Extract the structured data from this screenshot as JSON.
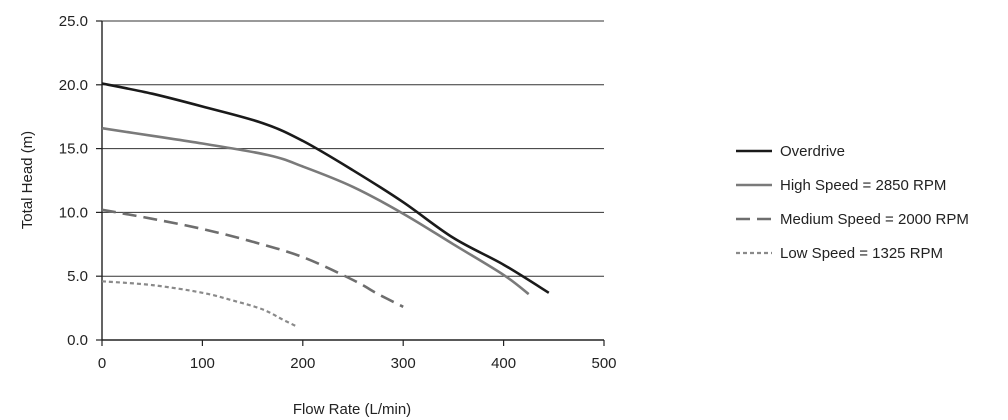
{
  "chart_data": {
    "type": "line",
    "xlabel": "Flow Rate (L/min)",
    "ylabel": "Total Head (m)",
    "xlim": [
      0,
      500
    ],
    "ylim": [
      0,
      25
    ],
    "xticks": [
      "0",
      "100",
      "200",
      "300",
      "400",
      "500"
    ],
    "yticks": [
      "0.0",
      "5.0",
      "10.0",
      "15.0",
      "20.0",
      "25.0"
    ],
    "grid": "horizontal",
    "legend_position": "right",
    "series": [
      {
        "name": "Overdrive",
        "color": "#1a1a1a",
        "dash": "solid",
        "points": [
          [
            0,
            20.1
          ],
          [
            50,
            19.3
          ],
          [
            100,
            18.3
          ],
          [
            160,
            17.0
          ],
          [
            200,
            15.6
          ],
          [
            250,
            13.3
          ],
          [
            300,
            10.8
          ],
          [
            350,
            8.0
          ],
          [
            400,
            5.9
          ],
          [
            445,
            3.7
          ]
        ]
      },
      {
        "name": "High Speed = 2850 RPM",
        "color": "#7a7a7a",
        "dash": "solid",
        "points": [
          [
            0,
            16.6
          ],
          [
            50,
            16.0
          ],
          [
            100,
            15.4
          ],
          [
            165,
            14.5
          ],
          [
            200,
            13.6
          ],
          [
            250,
            12.0
          ],
          [
            300,
            9.9
          ],
          [
            350,
            7.5
          ],
          [
            400,
            5.1
          ],
          [
            425,
            3.6
          ]
        ]
      },
      {
        "name": "Medium Speed = 2000 RPM",
        "color": "#6e6e6e",
        "dash": "long-dash",
        "points": [
          [
            0,
            10.2
          ],
          [
            50,
            9.5
          ],
          [
            100,
            8.7
          ],
          [
            150,
            7.7
          ],
          [
            200,
            6.5
          ],
          [
            250,
            4.7
          ],
          [
            275,
            3.6
          ],
          [
            300,
            2.6
          ]
        ]
      },
      {
        "name": "Low Speed = 1325 RPM",
        "color": "#8a8a8a",
        "dash": "short-dash",
        "points": [
          [
            0,
            4.6
          ],
          [
            50,
            4.3
          ],
          [
            100,
            3.7
          ],
          [
            130,
            3.1
          ],
          [
            160,
            2.4
          ],
          [
            180,
            1.6
          ],
          [
            193,
            1.1
          ]
        ]
      }
    ]
  }
}
